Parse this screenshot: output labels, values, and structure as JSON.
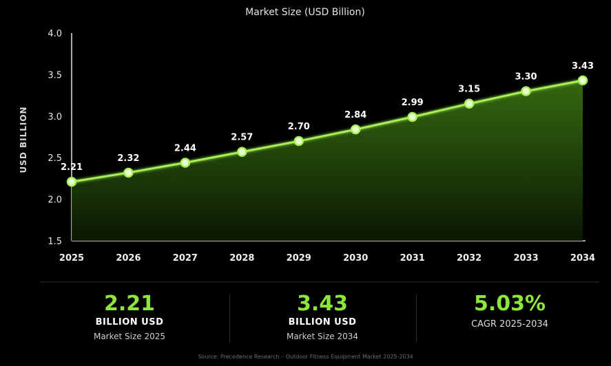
{
  "chart_data": {
    "type": "area",
    "title": "Market Size (USD Billion)",
    "xlabel": "",
    "ylabel": "USD BILLION",
    "x": [
      "2025",
      "2026",
      "2027",
      "2028",
      "2029",
      "2030",
      "2031",
      "2032",
      "2033",
      "2034"
    ],
    "values": [
      2.21,
      2.32,
      2.44,
      2.57,
      2.7,
      2.84,
      2.99,
      3.15,
      3.3,
      3.43
    ],
    "data_labels": [
      "2.21",
      "2.32",
      "2.44",
      "2.57",
      "2.70",
      "2.84",
      "2.99",
      "3.15",
      "3.30",
      "3.43"
    ],
    "ylim": [
      1.5,
      4.0
    ],
    "yticks": [
      "1.5",
      "2.0",
      "2.5",
      "3.0",
      "3.5",
      "4.0"
    ],
    "grid": false,
    "colors": {
      "line": "#a6f055",
      "fill_top": "#3d7a12",
      "marker": "#e9ffd0",
      "axis": "#e0e0e0"
    }
  },
  "stats": [
    {
      "value": "2.21",
      "unit": "BILLION USD",
      "label": "Market Size 2025"
    },
    {
      "value": "3.43",
      "unit": "BILLION USD",
      "label": "Market Size 2034"
    },
    {
      "value": "5.03%",
      "unit": "",
      "label": "CAGR 2025-2034"
    }
  ],
  "source": "Source: Precedence Research – Outdoor Fitness Equipment Market 2025-2034"
}
